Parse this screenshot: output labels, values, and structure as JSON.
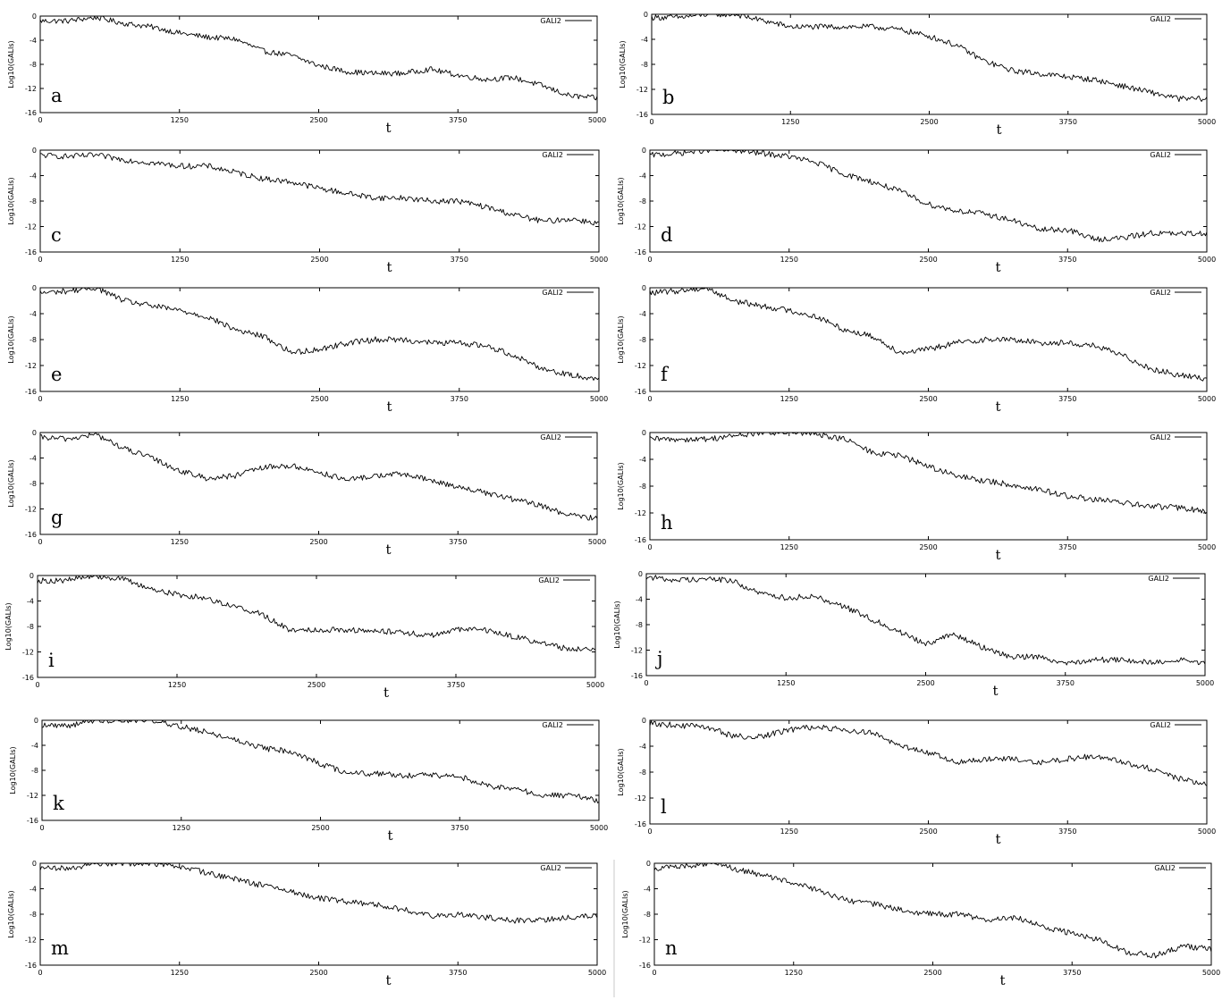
{
  "chart_data": [
    {
      "panel": "a",
      "type": "line",
      "legend": "GALI2",
      "ylabel": "Log10(GALIs)",
      "xlabel": "t",
      "xlim": [
        0,
        5000
      ],
      "ylim": [
        -16,
        0
      ],
      "x_ticks": [
        0,
        1250,
        2500,
        3750,
        5000
      ],
      "y_ticks": [
        0,
        -4,
        -8,
        -12,
        -16
      ],
      "legend_position": "top-right",
      "grid": false,
      "series": [
        {
          "x": [
            0,
            250,
            500,
            750,
            1000,
            1250,
            1500,
            1750,
            2000,
            2250,
            2500,
            2750,
            3000,
            3250,
            3500,
            3750,
            4000,
            4250,
            4500,
            4750,
            5000
          ],
          "values": [
            -0.8,
            -0.8,
            -0.2,
            -1.2,
            -1.8,
            -2.8,
            -3.5,
            -3.8,
            -5.8,
            -6.5,
            -8.2,
            -9.2,
            -9.5,
            -9.5,
            -8.8,
            -9.8,
            -10.5,
            -10.2,
            -11.5,
            -13.2,
            -13.6
          ]
        }
      ]
    },
    {
      "panel": "b",
      "type": "line",
      "legend": "GALI2",
      "ylabel": "Log10(GALIs)",
      "xlabel": "t",
      "xlim": [
        0,
        5000
      ],
      "ylim": [
        -16,
        0
      ],
      "x_ticks": [
        0,
        1250,
        2500,
        3750,
        5000
      ],
      "y_ticks": [
        0,
        -4,
        -8,
        -12,
        -16
      ],
      "legend_position": "top-right",
      "grid": false,
      "series": [
        {
          "x": [
            0,
            250,
            500,
            750,
            1000,
            1250,
            1500,
            1750,
            2000,
            2250,
            2500,
            2750,
            3000,
            3250,
            3500,
            3750,
            4000,
            4250,
            4500,
            4750,
            5000
          ],
          "values": [
            -0.5,
            -0.5,
            0,
            0,
            -1,
            -2,
            -2,
            -2,
            -2,
            -2.5,
            -3.5,
            -5,
            -7.5,
            -9,
            -9.5,
            -10,
            -10.5,
            -11.5,
            -12.5,
            -13.5,
            -13.5
          ]
        }
      ]
    },
    {
      "panel": "c",
      "type": "line",
      "legend": "GALI2",
      "ylabel": "Log10(GALIs)",
      "xlabel": "t",
      "xlim": [
        0,
        5000
      ],
      "ylim": [
        -16,
        0
      ],
      "x_ticks": [
        0,
        1250,
        2500,
        3750,
        5000
      ],
      "y_ticks": [
        0,
        -4,
        -8,
        -12,
        -16
      ],
      "legend_position": "top-right",
      "grid": false,
      "series": [
        {
          "x": [
            0,
            250,
            500,
            750,
            1000,
            1250,
            1500,
            1750,
            2000,
            2250,
            2500,
            2750,
            3000,
            3250,
            3500,
            3750,
            4000,
            4250,
            4500,
            4750,
            5000
          ],
          "values": [
            -0.8,
            -1,
            -0.8,
            -1.5,
            -2,
            -2.5,
            -2.5,
            -3.5,
            -4.5,
            -5,
            -6,
            -6.8,
            -7.5,
            -7.5,
            -8,
            -8,
            -9,
            -10.2,
            -11.2,
            -10.8,
            -11.5
          ]
        }
      ]
    },
    {
      "panel": "d",
      "type": "line",
      "legend": "GALI2",
      "ylabel": "Log10(GALIs)",
      "xlabel": "t",
      "xlim": [
        0,
        5000
      ],
      "ylim": [
        -16,
        0
      ],
      "x_ticks": [
        0,
        1250,
        2500,
        3750,
        5000
      ],
      "y_ticks": [
        0,
        -4,
        -8,
        -12,
        -16
      ],
      "legend_position": "top-right",
      "grid": false,
      "series": [
        {
          "x": [
            0,
            250,
            500,
            750,
            1000,
            1250,
            1500,
            1750,
            2000,
            2250,
            2500,
            2750,
            3000,
            3250,
            3500,
            3750,
            4000,
            4250,
            4500,
            4750,
            5000
          ],
          "values": [
            -0.8,
            -0.5,
            0,
            0,
            -0.5,
            -1,
            -2,
            -3.8,
            -5,
            -6.5,
            -8.5,
            -9.5,
            -10,
            -11,
            -12.5,
            -12.5,
            -14,
            -13.8,
            -13,
            -13.2,
            -13
          ]
        }
      ]
    },
    {
      "panel": "e",
      "type": "line",
      "legend": "GALI2",
      "ylabel": "Log10(GALIs)",
      "xlabel": "t",
      "xlim": [
        0,
        5000
      ],
      "ylim": [
        -16,
        0
      ],
      "x_ticks": [
        0,
        1250,
        2500,
        3750,
        5000
      ],
      "y_ticks": [
        0,
        -4,
        -8,
        -12,
        -16
      ],
      "legend_position": "top-right",
      "grid": false,
      "series": [
        {
          "x": [
            0,
            250,
            500,
            750,
            1000,
            1250,
            1500,
            1750,
            2000,
            2250,
            2500,
            2750,
            3000,
            3250,
            3500,
            3750,
            4000,
            4250,
            4500,
            4750,
            5000
          ],
          "values": [
            -0.8,
            -0.5,
            0,
            -2,
            -2.8,
            -3.5,
            -4.5,
            -6.5,
            -7.5,
            -10,
            -9.5,
            -8.5,
            -8,
            -8,
            -8.5,
            -8.5,
            -9,
            -10.5,
            -12.5,
            -13.5,
            -14
          ]
        }
      ]
    },
    {
      "panel": "f",
      "type": "line",
      "legend": "GALI2",
      "ylabel": "Log10(GALIs)",
      "xlabel": "t",
      "xlim": [
        0,
        5000
      ],
      "ylim": [
        -16,
        0
      ],
      "x_ticks": [
        0,
        1250,
        2500,
        3750,
        5000
      ],
      "y_ticks": [
        0,
        -4,
        -8,
        -12,
        -16
      ],
      "legend_position": "top-right",
      "grid": false,
      "series": [
        {
          "x": [
            0,
            250,
            500,
            750,
            1000,
            1250,
            1500,
            1750,
            2000,
            2250,
            2500,
            2750,
            3000,
            3250,
            3500,
            3750,
            4000,
            4250,
            4500,
            4750,
            5000
          ],
          "values": [
            -0.8,
            -0.5,
            0,
            -2,
            -2.8,
            -3.5,
            -4.5,
            -6.5,
            -7.5,
            -10,
            -9.5,
            -8.5,
            -8,
            -8,
            -8.5,
            -8.5,
            -9,
            -10.5,
            -12.5,
            -13.5,
            -14
          ]
        }
      ]
    },
    {
      "panel": "g",
      "type": "line",
      "legend": "GALI2",
      "ylabel": "Log10(GALIs)",
      "xlabel": "t",
      "xlim": [
        0,
        5000
      ],
      "ylim": [
        -16,
        0
      ],
      "x_ticks": [
        0,
        1250,
        2500,
        3750,
        5000
      ],
      "y_ticks": [
        0,
        -4,
        -8,
        -12,
        -16
      ],
      "legend_position": "top-right",
      "grid": false,
      "series": [
        {
          "x": [
            0,
            250,
            500,
            750,
            1000,
            1250,
            1500,
            1750,
            2000,
            2250,
            2500,
            2750,
            3000,
            3250,
            3500,
            3750,
            4000,
            4250,
            4500,
            4750,
            5000
          ],
          "values": [
            -0.8,
            -1,
            -0.3,
            -2.5,
            -4,
            -6,
            -7.2,
            -6.8,
            -5.5,
            -5.2,
            -6.2,
            -7.5,
            -6.8,
            -6.5,
            -7.5,
            -8.5,
            -9.5,
            -10.5,
            -11.5,
            -13,
            -13.5
          ]
        }
      ]
    },
    {
      "panel": "h",
      "type": "line",
      "legend": "GALI2",
      "ylabel": "Log10(GALIs)",
      "xlabel": "t",
      "xlim": [
        0,
        5000
      ],
      "ylim": [
        -16,
        0
      ],
      "x_ticks": [
        0,
        1250,
        2500,
        3750,
        5000
      ],
      "y_ticks": [
        0,
        -4,
        -8,
        -12,
        -16
      ],
      "legend_position": "top-right",
      "grid": false,
      "series": [
        {
          "x": [
            0,
            250,
            500,
            750,
            1000,
            1250,
            1500,
            1750,
            2000,
            2250,
            2500,
            2750,
            3000,
            3250,
            3500,
            3750,
            4000,
            4250,
            4500,
            4750,
            5000
          ],
          "values": [
            -1,
            -1,
            -1,
            -0.5,
            0,
            0,
            -0.2,
            -1,
            -3,
            -3.5,
            -5,
            -6.5,
            -7.2,
            -7.8,
            -8.5,
            -9.5,
            -10,
            -10.5,
            -11,
            -11.2,
            -11.8
          ]
        }
      ]
    },
    {
      "panel": "i",
      "type": "line",
      "legend": "GALI2",
      "ylabel": "Log10(GALIs)",
      "xlabel": "t",
      "xlim": [
        0,
        5000
      ],
      "ylim": [
        -16,
        0
      ],
      "x_ticks": [
        0,
        1250,
        2500,
        3750,
        5000
      ],
      "y_ticks": [
        0,
        -4,
        -8,
        -12,
        -16
      ],
      "legend_position": "top-right",
      "grid": false,
      "series": [
        {
          "x": [
            0,
            250,
            500,
            750,
            1000,
            1250,
            1500,
            1750,
            2000,
            2250,
            2500,
            2750,
            3000,
            3250,
            3500,
            3750,
            4000,
            4250,
            4500,
            4750,
            5000
          ],
          "values": [
            -0.8,
            -0.8,
            0,
            -0.5,
            -2,
            -3,
            -3.5,
            -4.8,
            -6,
            -8.5,
            -8.5,
            -8.5,
            -8.8,
            -8.8,
            -9.5,
            -8.5,
            -8.5,
            -9.5,
            -10.5,
            -11.5,
            -11.5
          ]
        }
      ]
    },
    {
      "panel": "j",
      "type": "line",
      "legend": "GALI2",
      "ylabel": "Log10(GALIs)",
      "xlabel": "t",
      "xlim": [
        0,
        5000
      ],
      "ylim": [
        -16,
        0
      ],
      "x_ticks": [
        0,
        1250,
        2500,
        3750,
        5000
      ],
      "y_ticks": [
        0,
        -4,
        -8,
        -12,
        -16
      ],
      "legend_position": "top-right",
      "grid": false,
      "series": [
        {
          "x": [
            0,
            250,
            500,
            750,
            1000,
            1250,
            1500,
            1750,
            2000,
            2250,
            2500,
            2750,
            3000,
            3250,
            3500,
            3750,
            4000,
            4250,
            4500,
            4750,
            5000
          ],
          "values": [
            -0.5,
            -1,
            -0.8,
            -1,
            -3,
            -3.8,
            -3.5,
            -5,
            -7,
            -9,
            -11,
            -9.5,
            -11.5,
            -13,
            -13,
            -14,
            -13.5,
            -13.5,
            -14,
            -13.5,
            -14
          ]
        }
      ]
    },
    {
      "panel": "k",
      "type": "line",
      "legend": "GALI2",
      "ylabel": "Log10(GALIs)",
      "xlabel": "t",
      "xlim": [
        0,
        5000
      ],
      "ylim": [
        -16,
        0
      ],
      "x_ticks": [
        0,
        1250,
        2500,
        3750,
        5000
      ],
      "y_ticks": [
        0,
        -4,
        -8,
        -12,
        -16
      ],
      "legend_position": "top-right",
      "grid": false,
      "series": [
        {
          "x": [
            0,
            250,
            500,
            750,
            1000,
            1250,
            1500,
            1750,
            2000,
            2250,
            2500,
            2750,
            3000,
            3250,
            3500,
            3750,
            4000,
            4250,
            4500,
            4750,
            5000
          ],
          "values": [
            -0.8,
            -0.8,
            0,
            0,
            0,
            -1,
            -2,
            -3.2,
            -4.5,
            -5,
            -7,
            -8.5,
            -8.5,
            -8.8,
            -8.8,
            -9,
            -10.5,
            -11,
            -12,
            -12,
            -12.8
          ]
        }
      ]
    },
    {
      "panel": "l",
      "type": "line",
      "legend": "GALI2",
      "ylabel": "Log10(GALIs)",
      "xlabel": "t",
      "xlim": [
        0,
        5000
      ],
      "ylim": [
        -16,
        0
      ],
      "x_ticks": [
        0,
        1250,
        2500,
        3750,
        5000
      ],
      "y_ticks": [
        0,
        -4,
        -8,
        -12,
        -16
      ],
      "legend_position": "top-right",
      "grid": false,
      "series": [
        {
          "x": [
            0,
            250,
            500,
            750,
            1000,
            1250,
            1500,
            1750,
            2000,
            2250,
            2500,
            2750,
            3000,
            3250,
            3500,
            3750,
            4000,
            4250,
            4500,
            4750,
            5000
          ],
          "values": [
            -0.5,
            -0.8,
            -1,
            -2.5,
            -2.5,
            -1.5,
            -1,
            -1.5,
            -2,
            -4,
            -5,
            -6.5,
            -6,
            -6,
            -6.5,
            -6,
            -5.5,
            -6.5,
            -7.5,
            -9,
            -9.8
          ]
        }
      ]
    },
    {
      "panel": "m",
      "type": "line",
      "legend": "GALI2",
      "ylabel": "Log10(GALIs)",
      "xlabel": "t",
      "xlim": [
        0,
        5000
      ],
      "ylim": [
        -16,
        0
      ],
      "x_ticks": [
        0,
        1250,
        2500,
        3750,
        5000
      ],
      "y_ticks": [
        0,
        -4,
        -8,
        -12,
        -16
      ],
      "legend_position": "top-right",
      "grid": false,
      "series": [
        {
          "x": [
            0,
            250,
            500,
            750,
            1000,
            1250,
            1500,
            1750,
            2000,
            2250,
            2500,
            2750,
            3000,
            3250,
            3500,
            3750,
            4000,
            4250,
            4500,
            4750,
            5000
          ],
          "values": [
            -0.8,
            -0.8,
            0,
            0,
            0,
            -0.5,
            -1.5,
            -2.5,
            -3.5,
            -4.5,
            -5.5,
            -6,
            -6.5,
            -7.2,
            -8.2,
            -8,
            -8.5,
            -9,
            -9,
            -8.5,
            -8.2
          ]
        }
      ]
    },
    {
      "panel": "n",
      "type": "line",
      "legend": "GALI2",
      "ylabel": "Log10(GALIs)",
      "xlabel": "t",
      "xlim": [
        0,
        5000
      ],
      "ylim": [
        -16,
        0
      ],
      "x_ticks": [
        0,
        1250,
        2500,
        3750,
        5000
      ],
      "y_ticks": [
        0,
        -4,
        -8,
        -12,
        -16
      ],
      "legend_position": "top-right",
      "grid": false,
      "series": [
        {
          "x": [
            0,
            250,
            500,
            750,
            1000,
            1250,
            1500,
            1750,
            2000,
            2250,
            2500,
            2750,
            3000,
            3250,
            3500,
            3750,
            4000,
            4250,
            4500,
            4750,
            5000
          ],
          "values": [
            -0.8,
            -0.5,
            0,
            -1,
            -2,
            -3,
            -4.5,
            -6,
            -6.5,
            -7.5,
            -8,
            -8,
            -9,
            -8.5,
            -10,
            -11,
            -12,
            -14,
            -14.5,
            -13,
            -13.5
          ]
        }
      ]
    }
  ]
}
